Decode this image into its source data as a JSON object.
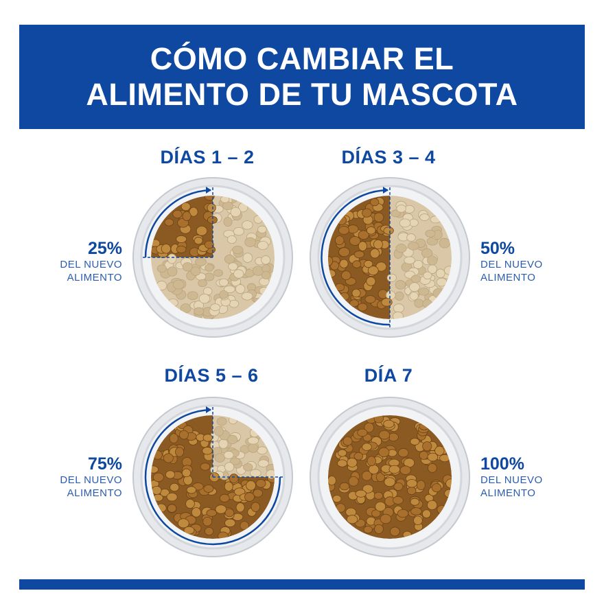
{
  "title": {
    "line1": "CÓMO CAMBIAR EL",
    "line2": "ALIMENTO DE TU MASCOTA"
  },
  "colors": {
    "brand": "#0e48a1",
    "kibble_new": "#9a6a2a",
    "kibble_old": "#d9c7a8"
  },
  "panels": [
    {
      "title": "DÍAS 1 – 2",
      "percent": "25%",
      "line1": "DEL NUEVO",
      "line2": "ALIMENTO",
      "new_fraction": 0.25
    },
    {
      "title": "DÍAS 3 – 4",
      "percent": "50%",
      "line1": "DEL NUEVO",
      "line2": "ALIMENTO",
      "new_fraction": 0.5
    },
    {
      "title": "DÍAS 5 – 6",
      "percent": "75%",
      "line1": "DEL NUEVO",
      "line2": "ALIMENTO",
      "new_fraction": 0.75
    },
    {
      "title": "DÍA 7",
      "percent": "100%",
      "line1": "DEL NUEVO",
      "line2": "ALIMENTO",
      "new_fraction": 1.0
    }
  ]
}
